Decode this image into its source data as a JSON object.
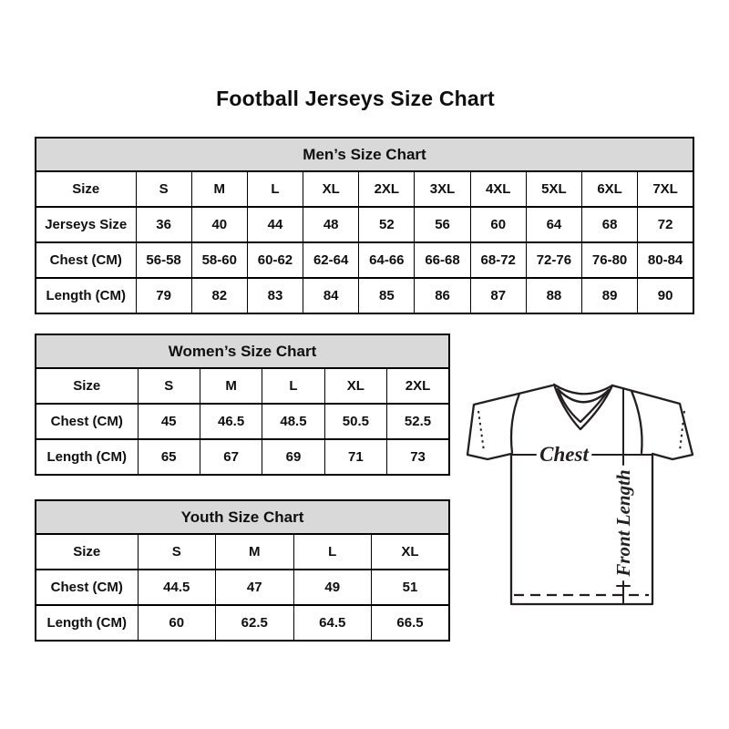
{
  "page_title": "Football Jerseys Size Chart",
  "colors": {
    "background": "#ffffff",
    "table_header_bg": "#d9d9d9",
    "table_border": "#000000",
    "text": "#0f0f0f",
    "diagram_line": "#231f20"
  },
  "tables": [
    {
      "id": "mens",
      "title": "Men’s Size Chart",
      "rows": [
        [
          "Size",
          "S",
          "M",
          "L",
          "XL",
          "2XL",
          "3XL",
          "4XL",
          "5XL",
          "6XL",
          "7XL"
        ],
        [
          "Jerseys Size",
          "36",
          "40",
          "44",
          "48",
          "52",
          "56",
          "60",
          "64",
          "68",
          "72"
        ],
        [
          "Chest (CM)",
          "56-58",
          "58-60",
          "60-62",
          "62-64",
          "64-66",
          "66-68",
          "68-72",
          "72-76",
          "76-80",
          "80-84"
        ],
        [
          "Length (CM)",
          "79",
          "82",
          "83",
          "84",
          "85",
          "86",
          "87",
          "88",
          "89",
          "90"
        ]
      ]
    },
    {
      "id": "womens",
      "title": "Women’s Size Chart",
      "rows": [
        [
          "Size",
          "S",
          "M",
          "L",
          "XL",
          "2XL"
        ],
        [
          "Chest (CM)",
          "45",
          "46.5",
          "48.5",
          "50.5",
          "52.5"
        ],
        [
          "Length (CM)",
          "65",
          "67",
          "69",
          "71",
          "73"
        ]
      ]
    },
    {
      "id": "youth",
      "title": "Youth Size Chart",
      "rows": [
        [
          "Size",
          "S",
          "M",
          "L",
          "XL"
        ],
        [
          "Chest (CM)",
          "44.5",
          "47",
          "49",
          "51"
        ],
        [
          "Length (CM)",
          "60",
          "62.5",
          "64.5",
          "66.5"
        ]
      ]
    }
  ],
  "diagram": {
    "chest_label": "Chest",
    "front_length_label": "Front Length"
  }
}
